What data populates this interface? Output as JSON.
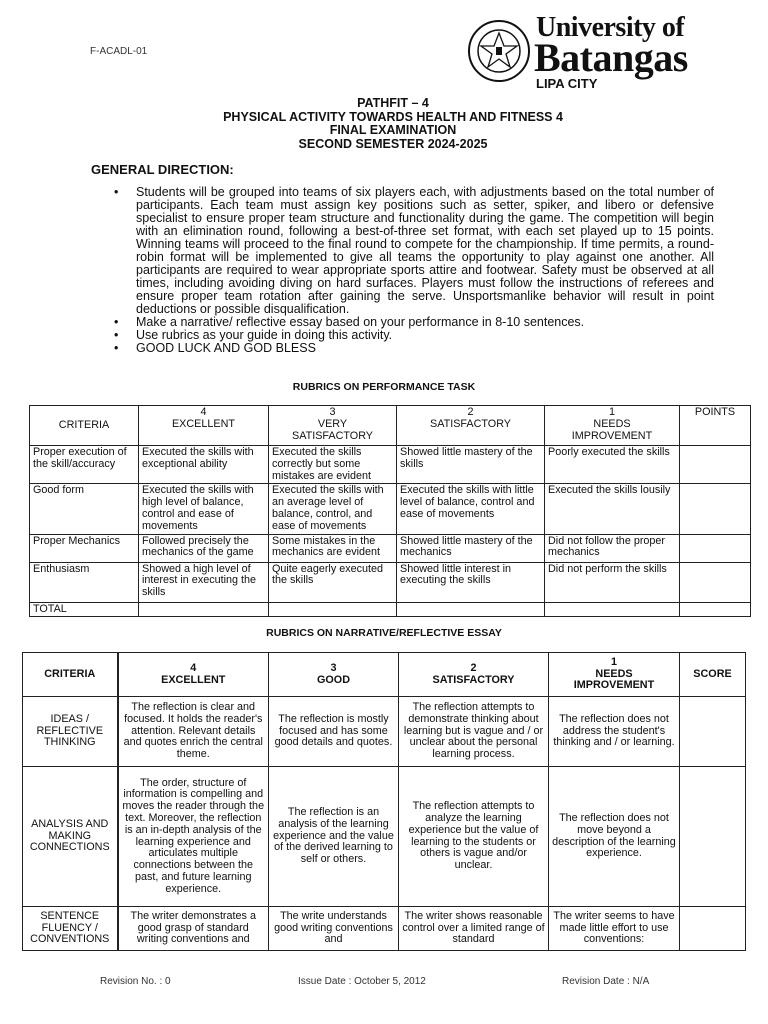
{
  "header": {
    "form_code": "F-ACADL-01",
    "logo": {
      "line1": "University of",
      "line2": "Batangas",
      "line3": "LIPA CITY",
      "seal_text": "UNIVERSITY OF BATANGAS 1946"
    }
  },
  "titles": [
    "PATHFIT – 4",
    "PHYSICAL ACTIVITY TOWARDS HEALTH AND FITNESS 4",
    "FINAL EXAMINATION",
    "SECOND SEMESTER 2024-2025"
  ],
  "general_direction": {
    "heading": "GENERAL DIRECTION:",
    "bullets": [
      "Students will be grouped into teams of six players each, with adjustments based on the total number of participants. Each team must assign key positions such as setter, spiker, and libero or defensive specialist to ensure proper team structure and functionality during the game. The competition will begin with an elimination round, following a best-of-three set format, with each set played up to 15 points. Winning teams will proceed to the final round to compete for the championship. If time permits, a round-robin format will be implemented to give all teams the opportunity to play against one another. All participants are required to wear appropriate sports attire and footwear. Safety must be observed at all times, including avoiding diving on hard surfaces. Players must follow the instructions of referees and ensure proper team rotation after gaining the serve. Unsportsmanlike behavior will result in point deductions or possible disqualification.",
      "Make a narrative/ reflective essay based on your performance in 8-10 sentences.",
      "Use rubrics as your guide in doing this activity.",
      "GOOD LUCK AND GOD BLESS"
    ]
  },
  "rubric1": {
    "caption": "RUBRICS ON PERFORMANCE TASK",
    "headers": [
      "CRITERIA",
      "4\nEXCELLENT",
      "3\nVERY\nSATISFACTORY",
      "2\nSATISFACTORY",
      "1\nNEEDS\nIMPROVEMENT",
      "POINTS"
    ],
    "rows": [
      [
        "Proper execution of the skill/accuracy",
        "Executed the skills with exceptional ability",
        "Executed the skills correctly but some mistakes are evident",
        "Showed little mastery of the skills",
        "Poorly executed the skills",
        ""
      ],
      [
        "Good form",
        "Executed the skills with high level of balance, control and ease of movements",
        "Executed the skills with an average level of balance, control, and ease of movements",
        "Executed the skills with little level of balance, control and ease of movements",
        "Executed the skills lousily",
        ""
      ],
      [
        "Proper Mechanics",
        "Followed precisely the mechanics of the game",
        "Some mistakes in the mechanics are evident",
        "Showed little mastery of the mechanics",
        "Did not follow the proper mechanics",
        ""
      ],
      [
        "Enthusiasm",
        "Showed a high level of interest in executing the skills",
        "Quite eagerly executed the skills",
        "Showed little interest in executing the skills",
        "Did not perform the skills",
        ""
      ],
      [
        "TOTAL",
        "",
        "",
        "",
        "",
        ""
      ]
    ]
  },
  "rubric2": {
    "caption": "RUBRICS ON NARRATIVE/REFLECTIVE ESSAY",
    "headers": [
      "CRITERIA",
      "4\nEXCELLENT",
      "3\nGOOD",
      "2\nSATISFACTORY",
      "1\nNEEDS\nIMPROVEMENT",
      "SCORE"
    ],
    "rows": [
      [
        "IDEAS / REFLECTIVE THINKING",
        "The reflection is clear and focused. It holds the reader's attention. Relevant details and quotes enrich the central theme.",
        "The reflection is mostly focused and has some good details and quotes.",
        "The reflection attempts to demonstrate thinking about learning but is vague and / or unclear about the personal learning process.",
        "The reflection does not address the student's thinking and / or learning.",
        ""
      ],
      [
        "ANALYSIS AND MAKING CONNECTIONS",
        "The order, structure of information is compelling and moves the reader through the text. Moreover, the reflection is an in-depth analysis of the learning experience and articulates multiple connections between the past, and future learning experience.",
        "The reflection is an analysis of the learning experience and the value of the derived learning to self or others.",
        "The reflection attempts to analyze the learning experience but the value of learning to the students or others is vague and/or unclear.",
        "The reflection does not move beyond a description of the learning experience.",
        ""
      ],
      [
        "SENTENCE FLUENCY / CONVENTIONS",
        "The writer demonstrates a good grasp of standard writing conventions and",
        "The write understands good writing conventions and",
        "The writer shows reasonable control over a limited range of standard",
        "The writer seems to have made little effort to use conventions:",
        ""
      ]
    ]
  },
  "footer": {
    "revision": "Revision No. : 0",
    "issue_date": "Issue Date : October 5, 2012",
    "revision_date": "Revision Date : N/A"
  }
}
